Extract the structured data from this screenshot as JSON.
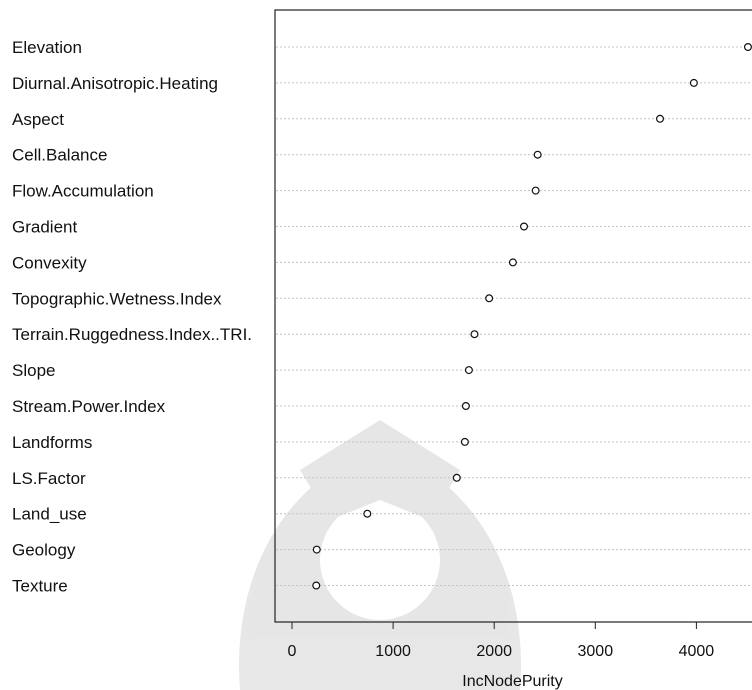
{
  "chart_data": {
    "type": "scatter",
    "xlabel": "IncNodePurity",
    "ylabel": "",
    "title": "",
    "xlim": [
      -180,
      4550
    ],
    "xticks": [
      0,
      1000,
      2000,
      3000,
      4000
    ],
    "grid": "horizontal dotted",
    "categories": [
      "Elevation",
      "Diurnal.Anisotropic.Heating",
      "Aspect",
      "Cell.Balance",
      "Flow.Accumulation",
      "Gradient",
      "Convexity",
      "Topographic.Wetness.Index",
      "Terrain.Ruggedness.Index..TRI.",
      "Slope",
      "Stream.Power.Index",
      "Landforms",
      "LS.Factor",
      "Land_use",
      "Geology",
      "Texture"
    ],
    "values": [
      4510,
      3975,
      3640,
      2430,
      2410,
      2295,
      2185,
      1950,
      1805,
      1750,
      1720,
      1710,
      1630,
      745,
      245,
      240
    ]
  }
}
